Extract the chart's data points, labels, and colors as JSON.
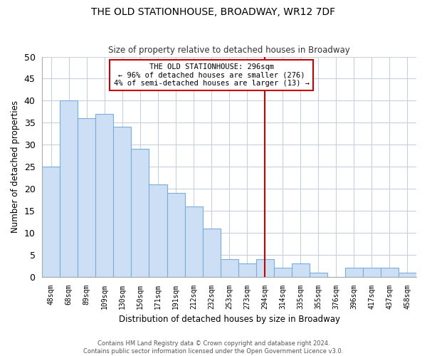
{
  "title": "THE OLD STATIONHOUSE, BROADWAY, WR12 7DF",
  "subtitle": "Size of property relative to detached houses in Broadway",
  "xlabel": "Distribution of detached houses by size in Broadway",
  "ylabel": "Number of detached properties",
  "bin_labels": [
    "48sqm",
    "68sqm",
    "89sqm",
    "109sqm",
    "130sqm",
    "150sqm",
    "171sqm",
    "191sqm",
    "212sqm",
    "232sqm",
    "253sqm",
    "273sqm",
    "294sqm",
    "314sqm",
    "335sqm",
    "355sqm",
    "376sqm",
    "396sqm",
    "417sqm",
    "437sqm",
    "458sqm"
  ],
  "bar_values": [
    25,
    40,
    36,
    37,
    34,
    29,
    21,
    19,
    16,
    11,
    4,
    3,
    4,
    2,
    3,
    1,
    0,
    2,
    2,
    2,
    1
  ],
  "bar_color": "#ccdff5",
  "bar_edge_color": "#7aadda",
  "grid_color": "#c8d0dc",
  "vline_x": 12,
  "vline_color": "#cc0000",
  "annotation_title": "THE OLD STATIONHOUSE: 296sqm",
  "annotation_line1": "← 96% of detached houses are smaller (276)",
  "annotation_line2": "4% of semi-detached houses are larger (13) →",
  "annotation_box_color": "#ffffff",
  "annotation_box_edge": "#cc0000",
  "ylim": [
    0,
    50
  ],
  "yticks": [
    0,
    5,
    10,
    15,
    20,
    25,
    30,
    35,
    40,
    45,
    50
  ],
  "footnote1": "Contains HM Land Registry data © Crown copyright and database right 2024.",
  "footnote2": "Contains public sector information licensed under the Open Government Licence v3.0."
}
